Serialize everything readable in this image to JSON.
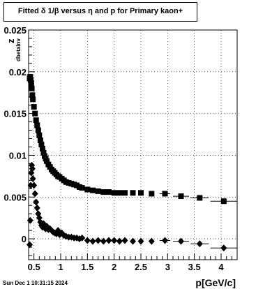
{
  "header": {
    "title": "Fitted δ 1/β versus η and p for Primary kaon+"
  },
  "footer": {
    "timestamp": "Sun Dec  1 10:31:15 2024"
  },
  "chart_data": {
    "type": "scatter",
    "title": "Fitted δ 1/β versus η and p for Primary kaon+",
    "xlabel": "p[GeV/c]",
    "ylabel": "z",
    "ylabel_subscript": "dbetaInv",
    "xlim": [
      0.4,
      4.3
    ],
    "ylim": [
      -0.0025,
      0.025
    ],
    "x_ticks": [
      0.5,
      1,
      1.5,
      2,
      2.5,
      3,
      3.5,
      4
    ],
    "x_tick_labels": [
      "0.5",
      "1",
      "1.5",
      "2",
      "2.5",
      "3",
      "3.5",
      "4"
    ],
    "y_ticks": [
      0,
      0.005,
      0.01,
      0.015,
      0.02,
      0.025
    ],
    "y_tick_labels": [
      "0",
      "0.005",
      "0.01",
      "0.015",
      "0.02",
      "0.025"
    ],
    "grid": true,
    "series": [
      {
        "marker": "square",
        "x": [
          0.42,
          0.43,
          0.44,
          0.45,
          0.46,
          0.47,
          0.48,
          0.5,
          0.52,
          0.54,
          0.56,
          0.58,
          0.6,
          0.62,
          0.64,
          0.66,
          0.68,
          0.7,
          0.72,
          0.74,
          0.77,
          0.8,
          0.83,
          0.86,
          0.89,
          0.92,
          0.95,
          0.98,
          1.02,
          1.06,
          1.1,
          1.15,
          1.2,
          1.25,
          1.3,
          1.35,
          1.4,
          1.5,
          1.6,
          1.7,
          1.8,
          1.9,
          2.0,
          2.1,
          2.2,
          2.35,
          2.5,
          2.7,
          2.95,
          3.25,
          3.6,
          4.05
        ],
        "y": [
          0.0192,
          0.0194,
          0.019,
          0.0186,
          0.018,
          0.0172,
          0.0167,
          0.0158,
          0.015,
          0.0142,
          0.0136,
          0.013,
          0.0124,
          0.0118,
          0.0113,
          0.0108,
          0.0103,
          0.0099,
          0.0096,
          0.0093,
          0.0089,
          0.0086,
          0.0083,
          0.0081,
          0.0079,
          0.0077,
          0.0075,
          0.0074,
          0.0072,
          0.007,
          0.0068,
          0.0067,
          0.0066,
          0.0065,
          0.0064,
          0.0062,
          0.0061,
          0.0059,
          0.0058,
          0.0057,
          0.0056,
          0.0056,
          0.0055,
          0.0055,
          0.0055,
          0.0055,
          0.0055,
          0.0054,
          0.0054,
          0.0051,
          0.0049,
          0.0045
        ],
        "xerr": [
          0,
          0,
          0,
          0,
          0,
          0,
          0,
          0,
          0,
          0,
          0,
          0,
          0,
          0,
          0,
          0,
          0,
          0,
          0,
          0,
          0,
          0,
          0,
          0,
          0,
          0,
          0,
          0,
          0,
          0,
          0,
          0,
          0,
          0,
          0,
          0,
          0,
          0,
          0,
          0,
          0,
          0,
          0,
          0,
          0,
          0,
          0,
          0,
          0.1,
          0.15,
          0.17,
          0.25
        ]
      },
      {
        "marker": "diamond",
        "x": [
          0.42,
          0.43,
          0.44,
          0.45,
          0.46,
          0.47,
          0.48,
          0.5,
          0.52,
          0.54,
          0.56,
          0.58,
          0.6,
          0.62,
          0.64,
          0.66,
          0.68,
          0.7,
          0.72,
          0.74,
          0.77,
          0.8,
          0.83,
          0.86,
          0.89,
          0.92,
          0.95,
          0.98,
          1.02,
          1.06,
          1.1,
          1.15,
          1.2,
          1.25,
          1.3,
          1.35,
          1.4,
          1.5,
          1.6,
          1.7,
          1.8,
          1.9,
          2.0,
          2.1,
          2.2,
          2.35,
          2.5,
          2.7,
          2.95,
          3.25,
          3.6,
          4.05
        ],
        "y": [
          -0.0007,
          0.0022,
          0.0064,
          0.0079,
          0.0088,
          0.0084,
          0.0072,
          0.0064,
          0.0054,
          0.0044,
          0.0037,
          0.003,
          0.0025,
          0.002,
          0.0016,
          0.0014,
          0.0018,
          0.0013,
          0.0012,
          0.0015,
          0.0011,
          0.0012,
          0.001,
          0.0008,
          0.0007,
          0.0006,
          0.001,
          0.0005,
          0.0007,
          0.0004,
          0.0003,
          0.0002,
          0.0002,
          0.0001,
          0.0001,
          0.0,
          0.0001,
          -0.0002,
          -0.0003,
          -0.0002,
          -0.0003,
          -0.0002,
          -0.0002,
          -0.0003,
          -0.0002,
          -0.0003,
          -0.0003,
          -0.0003,
          -0.0002,
          -0.0003,
          -0.0006,
          -0.0011
        ],
        "xerr": [
          0,
          0,
          0,
          0,
          0,
          0,
          0,
          0,
          0,
          0,
          0,
          0,
          0,
          0,
          0,
          0,
          0,
          0,
          0,
          0,
          0,
          0,
          0,
          0,
          0,
          0,
          0,
          0,
          0,
          0,
          0,
          0,
          0,
          0,
          0,
          0,
          0,
          0,
          0,
          0,
          0,
          0,
          0,
          0,
          0,
          0,
          0,
          0,
          0.1,
          0.15,
          0.17,
          0.25
        ]
      }
    ]
  }
}
